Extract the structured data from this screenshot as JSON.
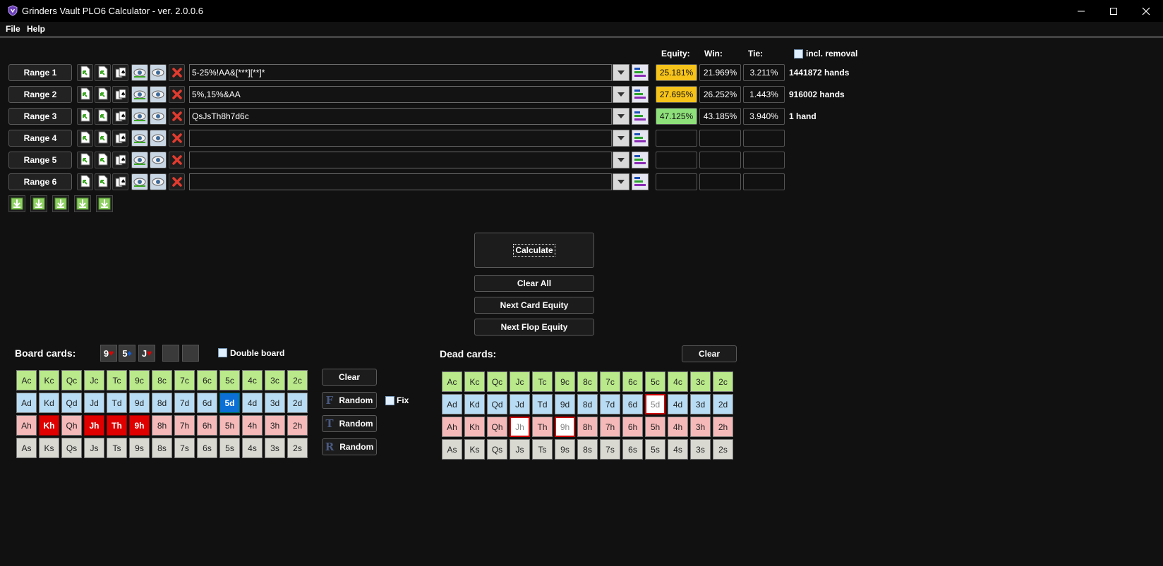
{
  "window": {
    "title": "Grinders Vault PLO6 Calculator - ver. 2.0.0.6"
  },
  "menu": [
    "File",
    "Help"
  ],
  "headers": {
    "equity": "Equity:",
    "win": "Win:",
    "tie": "Tie:",
    "incl_removal": "incl. removal"
  },
  "ranges": [
    {
      "label": "Range 1",
      "value": "5-25%!AA&[***][**]*",
      "equity": "25.181%",
      "win": "21.969%",
      "tie": "3.211%",
      "hands": "1441872 hands",
      "equity_color": "#f6c31a"
    },
    {
      "label": "Range 2",
      "value": "5%,15%&AA",
      "equity": "27.695%",
      "win": "26.252%",
      "tie": "1.443%",
      "hands": "916002 hands",
      "equity_color": "#f6c31a"
    },
    {
      "label": "Range 3",
      "value": "QsJsTh8h7d6c",
      "equity": "47.125%",
      "win": "43.185%",
      "tie": "3.940%",
      "hands": "1 hand",
      "equity_color": "#8ee07a"
    },
    {
      "label": "Range 4",
      "value": "",
      "equity": "",
      "win": "",
      "tie": "",
      "hands": ""
    },
    {
      "label": "Range 5",
      "value": "",
      "equity": "",
      "win": "",
      "tie": "",
      "hands": ""
    },
    {
      "label": "Range 6",
      "value": "",
      "equity": "",
      "win": "",
      "tie": "",
      "hands": ""
    }
  ],
  "actions": {
    "calculate": "Calculate",
    "clear_all": "Clear All",
    "next_card": "Next Card Equity",
    "next_flop": "Next Flop Equity"
  },
  "board": {
    "label": "Board cards:",
    "slots": [
      {
        "rank": "9",
        "suit": "♥",
        "suit_color": "#e00000"
      },
      {
        "rank": "5",
        "suit": "♦",
        "suit_color": "#1060e0"
      },
      {
        "rank": "J",
        "suit": "♥",
        "suit_color": "#e00000"
      },
      {
        "rank": "",
        "suit": ""
      },
      {
        "rank": "",
        "suit": ""
      }
    ],
    "double_board": "Double board",
    "clear": "Clear",
    "random_buttons": [
      {
        "letter": "F",
        "label": "Random"
      },
      {
        "letter": "T",
        "label": "Random"
      },
      {
        "letter": "R",
        "label": "Random"
      }
    ],
    "fix": "Fix",
    "selected": [
      "Jh",
      "9h",
      "5d"
    ],
    "bold": [
      "Kh",
      "Th"
    ]
  },
  "dead": {
    "label": "Dead cards:",
    "clear": "Clear",
    "used": [
      "5d",
      "Jh",
      "9h"
    ]
  },
  "deck": {
    "ranks": [
      "A",
      "K",
      "Q",
      "J",
      "T",
      "9",
      "8",
      "7",
      "6",
      "5",
      "4",
      "3",
      "2"
    ],
    "suits": [
      "c",
      "d",
      "h",
      "s"
    ]
  },
  "colors": {
    "background": "#111111",
    "club": "#b9e98a",
    "diamond": "#b8dcf4",
    "heart": "#f6b9b9",
    "spade": "#d9d9d2"
  }
}
